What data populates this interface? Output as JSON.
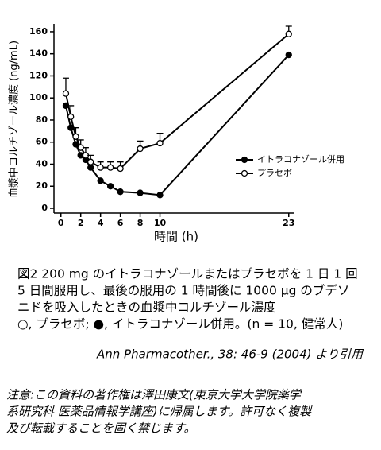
{
  "chart_data": {
    "type": "line",
    "y_label": "血漿中コルチゾール濃度 (ng/mL)",
    "x_label": "時間 (h)",
    "x": [
      0.5,
      1,
      1.5,
      2,
      2.5,
      3,
      4,
      5,
      6,
      8,
      10,
      23
    ],
    "series": [
      {
        "name": "イトラコナゾール併用",
        "color": "#000000",
        "marker": "filled",
        "values": [
          93,
          73,
          58,
          48,
          44,
          37,
          25,
          20,
          15,
          14,
          12,
          139
        ]
      },
      {
        "name": "プラセボ",
        "color": "#000000",
        "marker": "open",
        "values": [
          104,
          83,
          65,
          55,
          48,
          42,
          37,
          37,
          36,
          54,
          59,
          158
        ],
        "errors": [
          14,
          10,
          8,
          7,
          7,
          6,
          5,
          5,
          6,
          7,
          9,
          7
        ]
      }
    ],
    "xlim": [
      -0.7,
      23.5
    ],
    "xticks": [
      0,
      2,
      4,
      6,
      8,
      10,
      23
    ],
    "ylim": [
      0,
      165
    ],
    "yticks": [
      0,
      20,
      40,
      60,
      80,
      100,
      120,
      140,
      160
    ],
    "grid": false
  },
  "caption": {
    "lines": [
      "図2  200 mg のイトラコナゾールまたはプラセボを 1 日 1 回",
      "5 日間服用し、最後の服用の 1 時間後に 1000 μg のブデソ",
      "ニドを吸入したときの血漿中コルチゾール濃度",
      "○, プラセボ; ●, イトラコナゾール併用。(n = 10, 健常人)"
    ],
    "citation": "Ann Pharmacother., 38: 46-9 (2004) より引用"
  },
  "note": {
    "lines": [
      "注意:この資料の著作権は澤田康文(東京大学大学院薬学",
      "系研究科  医薬品情報学講座)に帰属します。許可なく複製",
      "及び転載することを固く禁じます。"
    ]
  }
}
